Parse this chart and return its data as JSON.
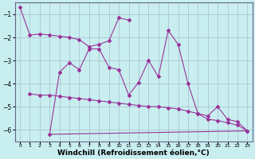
{
  "background_color": "#c8eef0",
  "line_color": "#993399",
  "grid_color": "#aabbcc",
  "xlabel": "Windchill (Refroidissement éolien,°C)",
  "xlabel_fontsize": 6.5,
  "xlim": [
    -0.5,
    23.5
  ],
  "ylim": [
    -6.5,
    -0.5
  ],
  "yticks": [
    -6,
    -5,
    -4,
    -3,
    -2,
    -1
  ],
  "xticks": [
    0,
    1,
    2,
    3,
    4,
    5,
    6,
    7,
    8,
    9,
    10,
    11,
    12,
    13,
    14,
    15,
    16,
    17,
    18,
    19,
    20,
    21,
    22,
    23
  ],
  "line1_x": [
    0,
    1,
    2,
    3,
    4,
    5,
    6,
    7,
    8,
    9,
    10,
    11
  ],
  "line1_y": [
    -0.7,
    -1.9,
    -1.85,
    -1.9,
    -1.95,
    -2.0,
    -2.1,
    -2.4,
    -2.3,
    -2.15,
    -1.15,
    -1.25
  ],
  "line2_x": [
    3,
    4,
    5,
    6,
    7,
    8,
    9,
    10,
    11,
    12,
    13,
    14,
    15,
    16,
    17,
    18,
    19,
    20,
    21,
    22,
    23
  ],
  "line2_y": [
    -6.2,
    -3.5,
    -3.1,
    -3.4,
    -2.5,
    -2.5,
    -3.3,
    -3.4,
    -4.5,
    -3.95,
    -3.0,
    -3.7,
    -1.7,
    -2.3,
    -4.0,
    -5.3,
    -5.4,
    -5.0,
    -5.55,
    -5.65,
    -6.05
  ],
  "line3_x": [
    1,
    2,
    3,
    4,
    5,
    6,
    7,
    8,
    9,
    10,
    11,
    12,
    13,
    14,
    15,
    16,
    17,
    18,
    19,
    20,
    21,
    22,
    23
  ],
  "line3_y": [
    -4.45,
    -4.5,
    -4.5,
    -4.55,
    -4.6,
    -4.65,
    -4.7,
    -4.75,
    -4.8,
    -4.85,
    -4.9,
    -4.95,
    -5.0,
    -5.0,
    -5.05,
    -5.1,
    -5.2,
    -5.3,
    -5.55,
    -5.6,
    -5.7,
    -5.8,
    -6.05
  ],
  "line4_x": [
    3,
    23
  ],
  "line4_y": [
    -6.2,
    -6.05
  ]
}
